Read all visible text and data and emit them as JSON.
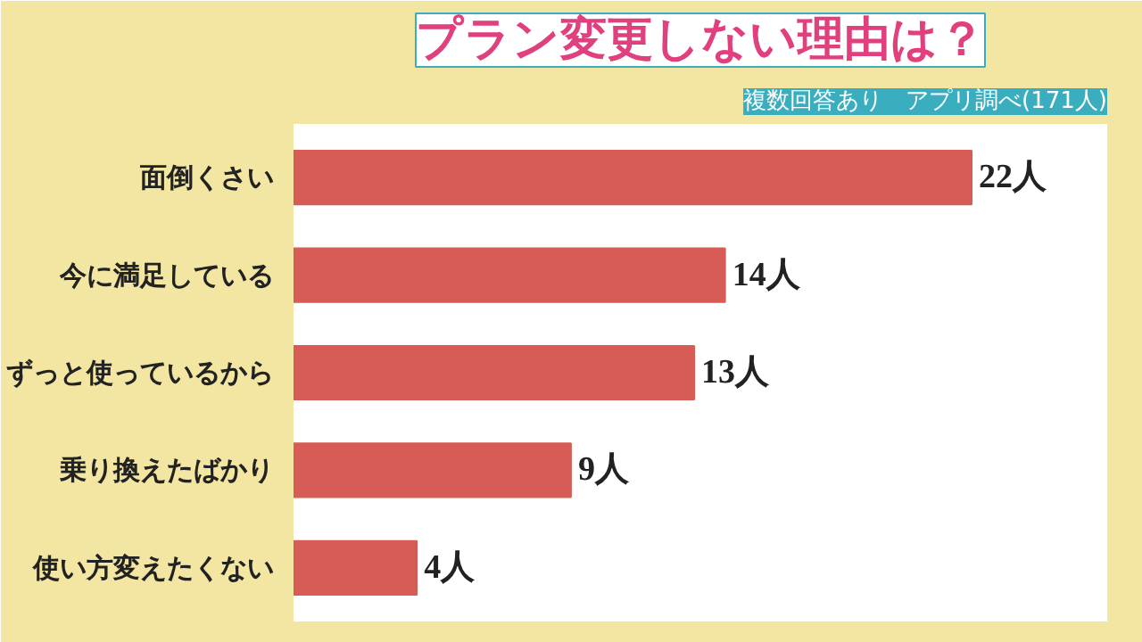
{
  "chart_data": {
    "type": "bar",
    "orientation": "horizontal",
    "title": "プラン変更しない理由は？",
    "subtitle": "複数回答あり　アプリ調べ(171人)",
    "categories": [
      "面倒くさい",
      "今に満足している",
      "ずっと使っているから",
      "乗り換えたばかり",
      "使い方変えたくない"
    ],
    "values": [
      22,
      14,
      13,
      9,
      4
    ],
    "color": "#d65c55",
    "value_labels": [
      "22人",
      "14人",
      "13人",
      "9人",
      "4人"
    ]
  }
}
